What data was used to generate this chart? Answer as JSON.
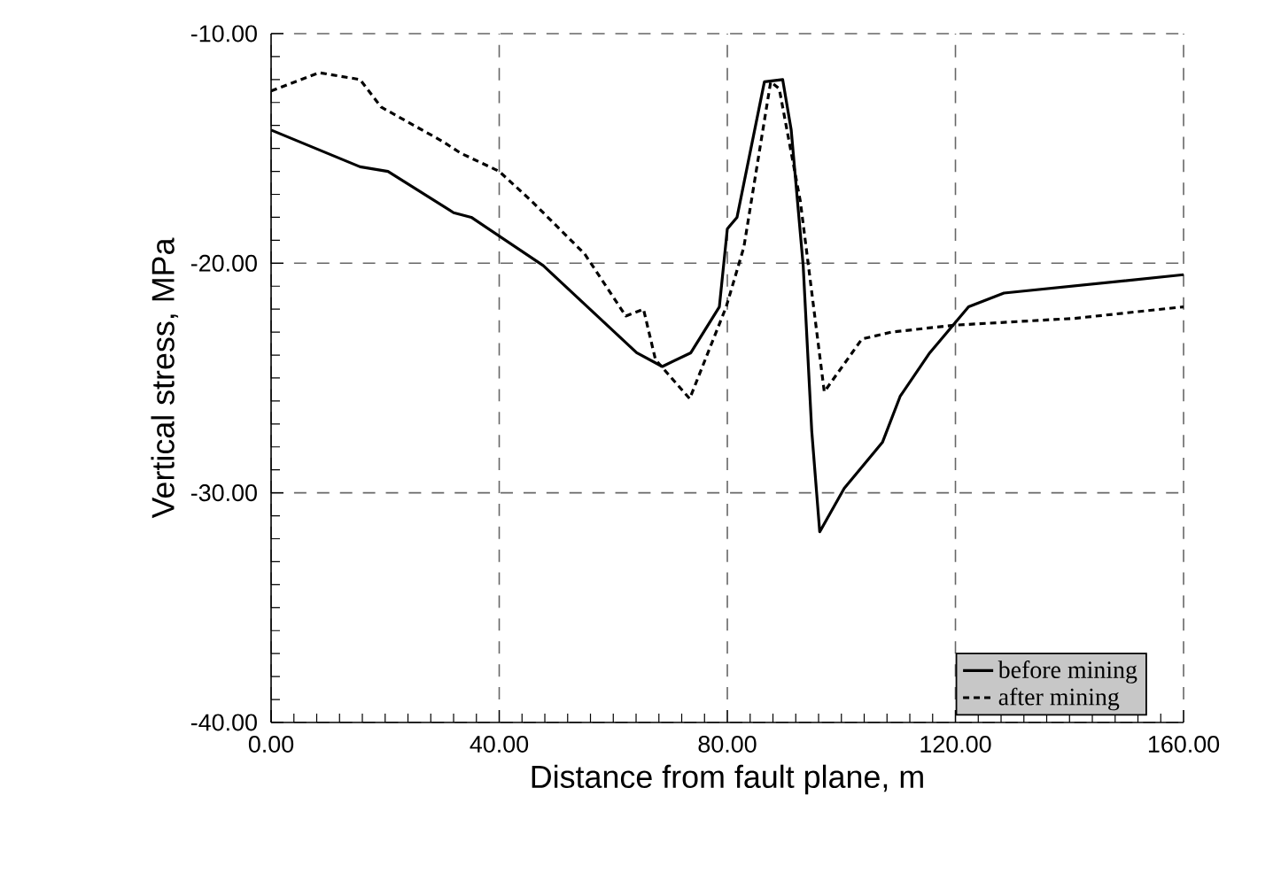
{
  "chart_data": {
    "type": "line",
    "xlabel": "Distance from fault plane, m",
    "ylabel": "Vertical stress, MPa",
    "xlim": [
      0,
      160
    ],
    "ylim": [
      -40,
      -10
    ],
    "xticks": [
      {
        "value": 0,
        "label": "0.00"
      },
      {
        "value": 40,
        "label": "40.00"
      },
      {
        "value": 80,
        "label": "80.00"
      },
      {
        "value": 120,
        "label": "120.00"
      },
      {
        "value": 160,
        "label": "160.00"
      }
    ],
    "yticks": [
      {
        "value": -40,
        "label": "-40.00"
      },
      {
        "value": -30,
        "label": "-30.00"
      },
      {
        "value": -20,
        "label": "-20.00"
      },
      {
        "value": -10,
        "label": "-10.00"
      }
    ],
    "grid": true,
    "legend": "bottom right",
    "series": [
      {
        "name": "before mining",
        "color": "#000000",
        "line_style": "solid",
        "x": [
          0,
          15.6,
          20.5,
          32.0,
          35.1,
          47.7,
          64.1,
          68.6,
          73.6,
          78.6,
          80.0,
          81.7,
          86.5,
          89.7,
          91.2,
          93.3,
          94.8,
          96.2,
          100.5,
          107.2,
          110.3,
          115.5,
          122.3,
          128.5,
          160
        ],
        "values": [
          -14.2,
          -15.8,
          -16.0,
          -17.8,
          -18.0,
          -20.1,
          -23.9,
          -24.5,
          -23.9,
          -21.9,
          -18.5,
          -18.0,
          -12.1,
          -12.0,
          -14.2,
          -20.1,
          -27.3,
          -31.7,
          -29.8,
          -27.8,
          -25.8,
          -23.9,
          -21.9,
          -21.3,
          -20.5
        ]
      },
      {
        "name": "after mining",
        "color": "#000000",
        "line_style": "dashed",
        "x": [
          0,
          8.4,
          15.6,
          19.3,
          30.1,
          33.2,
          40.0,
          45.7,
          55.0,
          62.2,
          65.3,
          67.4,
          73.4,
          79.8,
          82.9,
          87.6,
          89.1,
          92.8,
          97.0,
          103.6,
          108.8,
          119.7,
          140.9,
          160
        ],
        "values": [
          -12.5,
          -11.7,
          -12.0,
          -13.2,
          -14.7,
          -15.2,
          -16.0,
          -17.3,
          -19.6,
          -22.3,
          -22.0,
          -24.2,
          -25.9,
          -21.9,
          -19.3,
          -12.1,
          -12.4,
          -17.3,
          -25.6,
          -23.3,
          -23.0,
          -22.7,
          -22.4,
          -21.9
        ]
      }
    ]
  }
}
